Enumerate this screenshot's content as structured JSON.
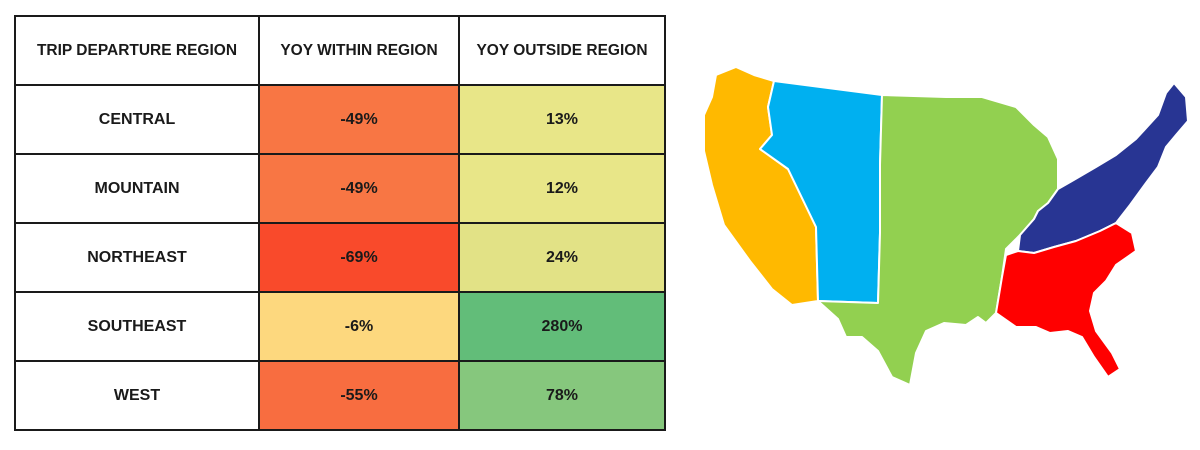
{
  "chart_data": {
    "type": "table",
    "columns": [
      "TRIP DEPARTURE REGION",
      "YOY WITHIN REGION",
      "YOY OUTSIDE REGION"
    ],
    "rows": [
      {
        "region": "CENTRAL",
        "within": "-49%",
        "outside": "13%",
        "within_value": -49,
        "outside_value": 13,
        "within_color": "#f87644",
        "outside_color": "#e8e688"
      },
      {
        "region": "MOUNTAIN",
        "within": "-49%",
        "outside": "12%",
        "within_value": -49,
        "outside_value": 12,
        "within_color": "#f87644",
        "outside_color": "#e8e688"
      },
      {
        "region": "NORTHEAST",
        "within": "-69%",
        "outside": "24%",
        "within_value": -69,
        "outside_value": 24,
        "within_color": "#f94a2b",
        "outside_color": "#e2e286"
      },
      {
        "region": "SOUTHEAST",
        "within": "-6%",
        "outside": "280%",
        "within_value": -6,
        "outside_value": 280,
        "within_color": "#fdd87e",
        "outside_color": "#62bd79"
      },
      {
        "region": "WEST",
        "within": "-55%",
        "outside": "78%",
        "within_value": -55,
        "outside_value": 78,
        "within_color": "#f86d40",
        "outside_color": "#86c77d"
      }
    ]
  },
  "map": {
    "region_colors": {
      "west": "#ffb900",
      "mountain": "#00b0f0",
      "central": "#92d050",
      "northeast": "#283593",
      "southeast": "#ff0000"
    }
  }
}
